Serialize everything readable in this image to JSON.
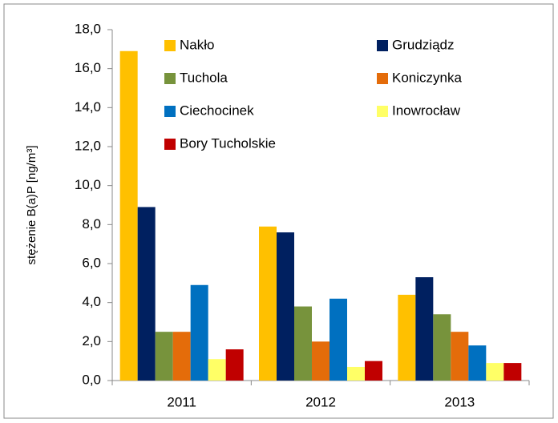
{
  "chart_data": {
    "type": "bar",
    "y_label": "stężenie B(a)P [ng/m³]",
    "categories": [
      "2011",
      "2012",
      "2013"
    ],
    "series": [
      {
        "name": "Nakło",
        "color": "#FFC000",
        "values": [
          16.9,
          7.9,
          4.4
        ]
      },
      {
        "name": "Grudziądz",
        "color": "#002060",
        "values": [
          8.9,
          7.6,
          5.3
        ]
      },
      {
        "name": "Tuchola",
        "color": "#77933C",
        "values": [
          2.5,
          3.8,
          3.4
        ]
      },
      {
        "name": "Koniczynka",
        "color": "#E46C0A",
        "values": [
          2.5,
          2.0,
          2.5
        ]
      },
      {
        "name": "Ciechocinek",
        "color": "#0070C0",
        "values": [
          4.9,
          4.2,
          1.8
        ]
      },
      {
        "name": "Inowrocław",
        "color": "#FFFF66",
        "values": [
          1.1,
          0.7,
          0.9
        ]
      },
      {
        "name": "Bory Tucholskie",
        "color": "#C00000",
        "values": [
          1.6,
          1.0,
          0.9
        ]
      }
    ],
    "ylim": [
      0,
      18
    ],
    "yticks": [
      {
        "value": 0,
        "label": "0,0"
      },
      {
        "value": 2,
        "label": "2,0"
      },
      {
        "value": 4,
        "label": "4,0"
      },
      {
        "value": 6,
        "label": "6,0"
      },
      {
        "value": 8,
        "label": "8,0"
      },
      {
        "value": 10,
        "label": "10,0"
      },
      {
        "value": 12,
        "label": "12,0"
      },
      {
        "value": 14,
        "label": "14,0"
      },
      {
        "value": 16,
        "label": "16,0"
      },
      {
        "value": 18,
        "label": "18,0"
      }
    ],
    "grid": false
  }
}
